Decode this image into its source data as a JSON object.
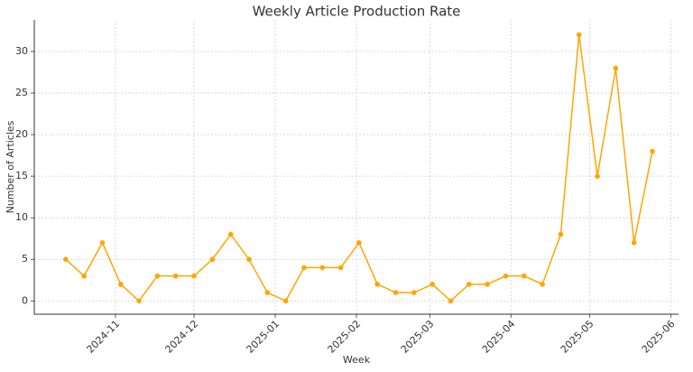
{
  "chart_data": {
    "type": "line",
    "title": "Weekly Article Production Rate",
    "x_label": "Week",
    "y_label": "Number of Articles",
    "x": [
      "2024-10-13",
      "2024-10-20",
      "2024-10-27",
      "2024-11-03",
      "2024-11-10",
      "2024-11-17",
      "2024-11-24",
      "2024-12-01",
      "2024-12-08",
      "2024-12-15",
      "2024-12-22",
      "2024-12-29",
      "2025-01-05",
      "2025-01-12",
      "2025-01-19",
      "2025-01-26",
      "2025-02-02",
      "2025-02-09",
      "2025-02-16",
      "2025-02-23",
      "2025-03-02",
      "2025-03-09",
      "2025-03-16",
      "2025-03-23",
      "2025-03-30",
      "2025-04-06",
      "2025-04-13",
      "2025-04-20",
      "2025-04-27",
      "2025-05-04",
      "2025-05-11",
      "2025-05-18",
      "2025-05-25"
    ],
    "series": [
      {
        "name": "Articles",
        "color": "#ffa500",
        "values": [
          5,
          3,
          7,
          2,
          0,
          3,
          3,
          3,
          5,
          8,
          5,
          1,
          0,
          4,
          4,
          4,
          7,
          2,
          1,
          1,
          2,
          0,
          2,
          2,
          3,
          3,
          2,
          8,
          32,
          15,
          28,
          7,
          18
        ]
      }
    ],
    "xlim": [
      "2024-10-01",
      "2025-06-04"
    ],
    "xticks": [
      {
        "value": "2024-11-01",
        "label": "2024-11"
      },
      {
        "value": "2024-12-01",
        "label": "2024-12"
      },
      {
        "value": "2025-01-01",
        "label": "2025-01"
      },
      {
        "value": "2025-02-01",
        "label": "2025-02"
      },
      {
        "value": "2025-03-01",
        "label": "2025-03"
      },
      {
        "value": "2025-04-01",
        "label": "2025-04"
      },
      {
        "value": "2025-05-01",
        "label": "2025-05"
      },
      {
        "value": "2025-06-01",
        "label": "2025-06"
      }
    ],
    "ylim": [
      -1.6,
      33.8
    ],
    "yticks": [
      0,
      5,
      10,
      15,
      20,
      25,
      30
    ],
    "grid": true
  }
}
